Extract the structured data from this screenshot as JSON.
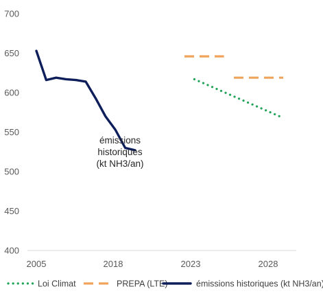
{
  "chart_data": {
    "type": "line",
    "x_ticks": [
      "2005",
      "2018",
      "2023",
      "2028"
    ],
    "y_ticks": [
      "400",
      "450",
      "500",
      "550",
      "600",
      "650",
      "700"
    ],
    "ylim": [
      400,
      700
    ],
    "grid": false,
    "series": [
      {
        "name": "Loi Climat",
        "color": "#22A35A",
        "style": "dotted",
        "points": [
          {
            "x": 2021,
            "y": 617
          },
          {
            "x": 2030,
            "y": 568
          }
        ]
      },
      {
        "name": "PREPA (LTE)",
        "color": "#F0A35A",
        "style": "dashed",
        "points": [
          {
            "x": 2020,
            "y": 646
          },
          {
            "x": 2024,
            "y": 646
          },
          {
            "x": 2025,
            "y": 619
          },
          {
            "x": 2030,
            "y": 619
          }
        ]
      },
      {
        "name": "émissions historiques (kt NH3/an)",
        "color": "#0D1E5B",
        "style": "solid",
        "points": [
          {
            "x": 2005,
            "y": 653
          },
          {
            "x": 2006,
            "y": 616
          },
          {
            "x": 2007,
            "y": 619
          },
          {
            "x": 2008,
            "y": 617
          },
          {
            "x": 2009,
            "y": 616
          },
          {
            "x": 2010,
            "y": 614
          },
          {
            "x": 2011,
            "y": 593
          },
          {
            "x": 2012,
            "y": 570
          },
          {
            "x": 2013,
            "y": 553
          },
          {
            "x": 2014,
            "y": 530
          },
          {
            "x": 2015,
            "y": 527
          }
        ]
      }
    ],
    "annotation": {
      "lines": [
        "émissions",
        "historiques",
        "(kt NH3/an)"
      ]
    },
    "legend": {
      "placement": "bottom",
      "items": [
        "Loi Climat",
        "PREPA (LTE)",
        "émissions historiques (kt NH3/an)"
      ]
    }
  }
}
